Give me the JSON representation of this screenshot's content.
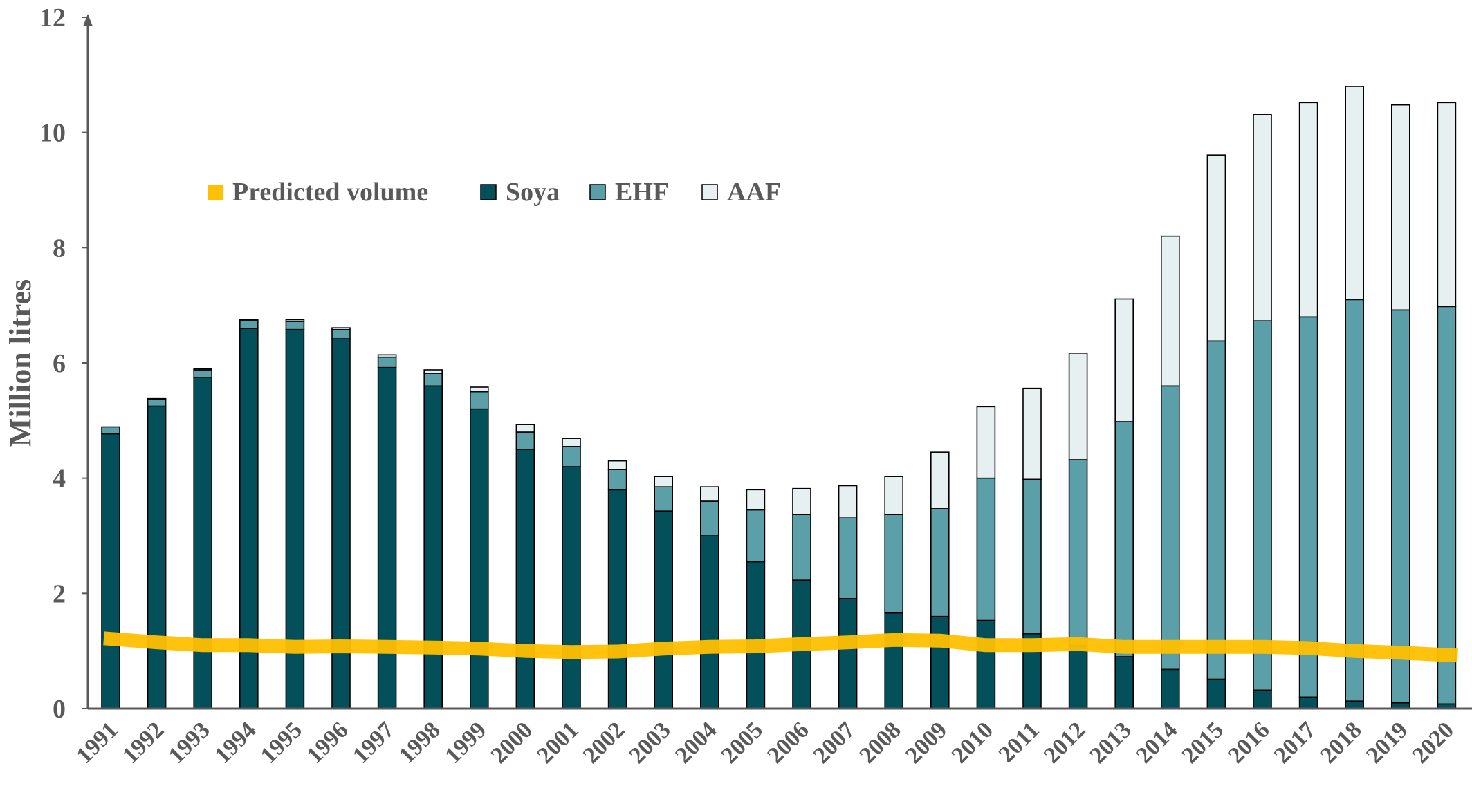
{
  "chart_data": {
    "type": "bar",
    "stacked": true,
    "title": "",
    "xlabel": "",
    "ylabel": "Million litres",
    "ylim": [
      0,
      12
    ],
    "yticks": [
      0,
      2,
      4,
      6,
      8,
      10,
      12
    ],
    "grid": false,
    "legend_position": "top-left",
    "categories": [
      "1991",
      "1992",
      "1993",
      "1994",
      "1995",
      "1996",
      "1997",
      "1998",
      "1999",
      "2000",
      "2001",
      "2002",
      "2003",
      "2004",
      "2005",
      "2006",
      "2007",
      "2008",
      "2009",
      "2010",
      "2011",
      "2012",
      "2013",
      "2014",
      "2015",
      "2016",
      "2017",
      "2018",
      "2019",
      "2020"
    ],
    "series": [
      {
        "name": "Soya",
        "kind": "bar",
        "color": "#03505a",
        "values": [
          4.77,
          5.25,
          5.75,
          6.6,
          6.58,
          6.42,
          5.92,
          5.6,
          5.2,
          4.5,
          4.2,
          3.8,
          3.43,
          3.0,
          2.55,
          2.23,
          1.91,
          1.66,
          1.6,
          1.53,
          1.3,
          1.1,
          0.9,
          0.68,
          0.51,
          0.32,
          0.2,
          0.13,
          0.1,
          0.08
        ]
      },
      {
        "name": "EHF",
        "kind": "bar",
        "color": "#5ba0a8",
        "values": [
          0.12,
          0.12,
          0.13,
          0.13,
          0.14,
          0.16,
          0.18,
          0.22,
          0.3,
          0.3,
          0.35,
          0.35,
          0.42,
          0.6,
          0.9,
          1.14,
          1.4,
          1.71,
          1.87,
          2.47,
          2.68,
          3.22,
          4.08,
          4.92,
          5.87,
          6.41,
          6.6,
          6.97,
          6.82,
          6.9
        ]
      },
      {
        "name": "AAF",
        "kind": "bar",
        "color": "#e6f0f1",
        "values": [
          0.0,
          0.01,
          0.02,
          0.02,
          0.03,
          0.03,
          0.04,
          0.06,
          0.08,
          0.13,
          0.14,
          0.15,
          0.18,
          0.25,
          0.35,
          0.45,
          0.56,
          0.66,
          0.98,
          1.24,
          1.58,
          1.85,
          2.13,
          2.6,
          3.23,
          3.58,
          3.72,
          3.7,
          3.56,
          3.54
        ]
      },
      {
        "name": "Predicted volume",
        "kind": "line",
        "color": "#ffc000",
        "values": [
          1.22,
          1.15,
          1.1,
          1.1,
          1.07,
          1.08,
          1.07,
          1.06,
          1.04,
          1.0,
          0.98,
          0.99,
          1.04,
          1.07,
          1.08,
          1.12,
          1.15,
          1.19,
          1.18,
          1.1,
          1.1,
          1.12,
          1.07,
          1.07,
          1.07,
          1.07,
          1.05,
          1.0,
          0.97,
          0.92
        ]
      }
    ]
  }
}
